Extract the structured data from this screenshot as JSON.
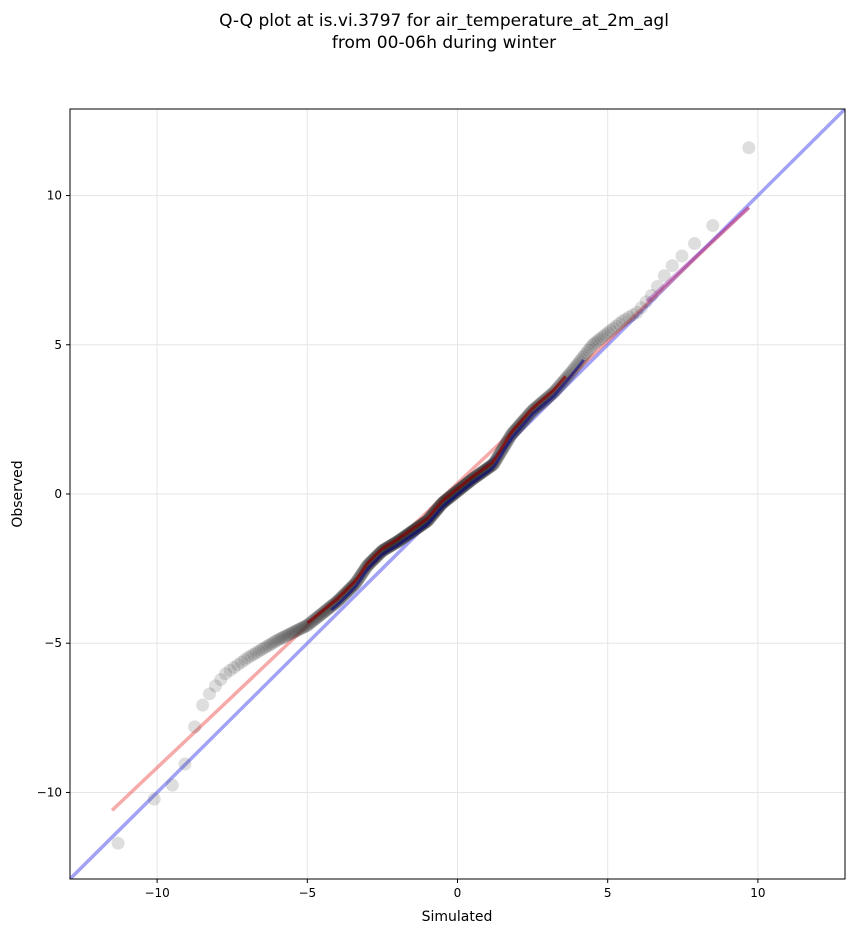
{
  "chart_data": {
    "type": "scatter",
    "title": "Q-Q plot at is.vi.3797 for air_temperature_at_2m_agl",
    "subtitle": "from 00-06h during winter",
    "xlabel": "Simulated",
    "ylabel": "Observed",
    "xlim": [
      -12.9,
      12.9
    ],
    "ylim": [
      -12.9,
      12.9
    ],
    "grid": true,
    "x_ticks": [
      -10,
      -5,
      0,
      5,
      10
    ],
    "y_ticks": [
      -10,
      -5,
      0,
      5,
      10
    ],
    "x_tick_labels": [
      "−10",
      "−5",
      "0",
      "5",
      "10"
    ],
    "y_tick_labels": [
      "−10",
      "−5",
      "0",
      "5",
      "10"
    ],
    "colors": {
      "points": "#333333",
      "identity_line": "#5555ee",
      "fit_line": "#ee5555",
      "dense_overlay_red": "#8b0000",
      "dense_overlay_blue": "#00008b",
      "grid": "#e6e6e6"
    },
    "anchors": [
      [
        -11.3,
        -11.7
      ],
      [
        -11.0,
        -11.2
      ],
      [
        -10.8,
        -10.9
      ],
      [
        -10.4,
        -10.3
      ],
      [
        -10.0,
        -10.2
      ],
      [
        -9.6,
        -9.9
      ],
      [
        -9.3,
        -9.5
      ],
      [
        -9.0,
        -8.9
      ],
      [
        -8.9,
        -8.4
      ],
      [
        -8.7,
        -7.6
      ],
      [
        -8.5,
        -7.1
      ],
      [
        -8.2,
        -6.6
      ],
      [
        -7.7,
        -6.0
      ],
      [
        -7.0,
        -5.5
      ],
      [
        -6.0,
        -4.9
      ],
      [
        -5.0,
        -4.4
      ],
      [
        -4.0,
        -3.6
      ],
      [
        -3.4,
        -3.0
      ],
      [
        -3.0,
        -2.4
      ],
      [
        -2.5,
        -1.9
      ],
      [
        -2.0,
        -1.6
      ],
      [
        -1.0,
        -0.9
      ],
      [
        -0.5,
        -0.3
      ],
      [
        0.0,
        0.1
      ],
      [
        0.5,
        0.5
      ],
      [
        1.2,
        1.0
      ],
      [
        1.8,
        2.0
      ],
      [
        2.5,
        2.8
      ],
      [
        3.2,
        3.4
      ],
      [
        3.8,
        4.1
      ],
      [
        4.5,
        5.0
      ],
      [
        5.0,
        5.4
      ],
      [
        5.5,
        5.8
      ],
      [
        6.0,
        6.1
      ],
      [
        6.5,
        6.7
      ],
      [
        7.0,
        7.5
      ],
      [
        7.5,
        8.0
      ],
      [
        8.0,
        8.5
      ],
      [
        8.5,
        9.0
      ],
      [
        9.0,
        9.8
      ],
      [
        9.5,
        10.4
      ],
      [
        9.7,
        11.6
      ]
    ],
    "series": [
      {
        "role": "scatter",
        "x_range": [
          -11.3,
          9.7
        ],
        "point_count": 420
      },
      {
        "role": "identity",
        "x": [
          -12.9,
          12.9
        ],
        "y": [
          -12.9,
          12.9
        ]
      },
      {
        "role": "fit",
        "x": [
          -11.5,
          9.7
        ],
        "y": [
          -10.6,
          9.6
        ]
      }
    ]
  }
}
